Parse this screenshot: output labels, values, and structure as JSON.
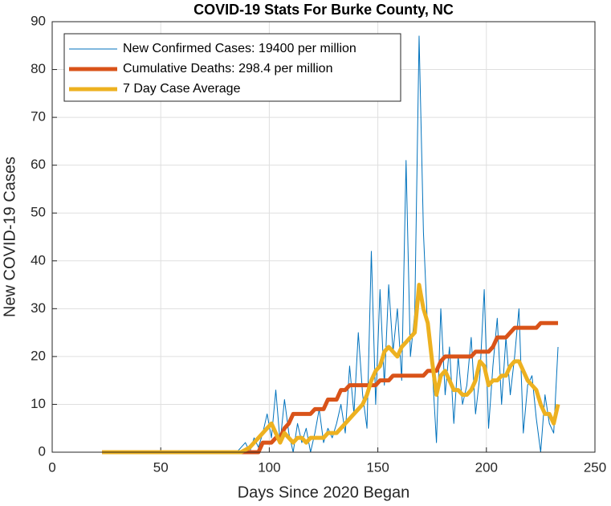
{
  "chart_data": {
    "type": "line",
    "title": "COVID-19 Stats For Burke County, NC",
    "x_label": "Days Since 2020 Began",
    "y_label": "New COVID-19 Cases",
    "x": [
      23,
      25,
      27,
      29,
      31,
      33,
      35,
      37,
      39,
      41,
      43,
      45,
      47,
      49,
      51,
      53,
      55,
      57,
      59,
      61,
      63,
      65,
      67,
      69,
      71,
      73,
      75,
      77,
      79,
      81,
      83,
      85,
      87,
      89,
      91,
      93,
      95,
      97,
      99,
      101,
      103,
      105,
      107,
      109,
      111,
      113,
      115,
      117,
      119,
      121,
      123,
      125,
      127,
      129,
      131,
      133,
      135,
      137,
      139,
      141,
      143,
      145,
      147,
      149,
      151,
      153,
      155,
      157,
      159,
      161,
      163,
      165,
      167,
      169,
      171,
      173,
      175,
      177,
      179,
      181,
      183,
      185,
      187,
      189,
      191,
      193,
      195,
      197,
      199,
      201,
      203,
      205,
      207,
      209,
      211,
      213,
      215,
      217,
      219,
      221,
      223,
      225,
      227,
      229,
      231,
      233
    ],
    "series": [
      {
        "name": "New Confirmed Cases: 19400 per million",
        "color": "#0072bd",
        "width": 1,
        "values": [
          0,
          0,
          0,
          0,
          0,
          0,
          0,
          0,
          0,
          0,
          0,
          0,
          0,
          0,
          0,
          0,
          0,
          0,
          0,
          0,
          0,
          0,
          0,
          0,
          0,
          0,
          0,
          0,
          0,
          0,
          0,
          0,
          1,
          2,
          0,
          3,
          1,
          4,
          8,
          3,
          13,
          2,
          11,
          4,
          0,
          6,
          2,
          5,
          0,
          4,
          9,
          2,
          5,
          3,
          6,
          10,
          4,
          18,
          8,
          25,
          12,
          5,
          42,
          10,
          34,
          14,
          35,
          21,
          30,
          15,
          61,
          20,
          29,
          87,
          46,
          25,
          18,
          2,
          30,
          12,
          22,
          6,
          20,
          10,
          14,
          24,
          8,
          16,
          34,
          5,
          18,
          28,
          10,
          24,
          12,
          20,
          30,
          4,
          14,
          16,
          7,
          0,
          12,
          6,
          4,
          22
        ]
      },
      {
        "name": "Cumulative Deaths: 298.4 per million",
        "color": "#d95319",
        "width": 5,
        "values": [
          0,
          0,
          0,
          0,
          0,
          0,
          0,
          0,
          0,
          0,
          0,
          0,
          0,
          0,
          0,
          0,
          0,
          0,
          0,
          0,
          0,
          0,
          0,
          0,
          0,
          0,
          0,
          0,
          0,
          0,
          0,
          0,
          0,
          0,
          0,
          0,
          0,
          2,
          2,
          2,
          3,
          3,
          5,
          6,
          8,
          8,
          8,
          8,
          8,
          9,
          9,
          9,
          11,
          11,
          11,
          13,
          13,
          14,
          14,
          14,
          14,
          14,
          14,
          14,
          15,
          15,
          15,
          16,
          16,
          16,
          16,
          16,
          16,
          16,
          16,
          17,
          17,
          17,
          19,
          20,
          20,
          20,
          20,
          20,
          20,
          20,
          21,
          21,
          21,
          21,
          22,
          24,
          24,
          24,
          25,
          26,
          26,
          26,
          26,
          26,
          26,
          27,
          27,
          27,
          27,
          27
        ]
      },
      {
        "name": "7 Day Case Average",
        "color": "#edb120",
        "width": 5,
        "values": [
          0,
          0,
          0,
          0,
          0,
          0,
          0,
          0,
          0,
          0,
          0,
          0,
          0,
          0,
          0,
          0,
          0,
          0,
          0,
          0,
          0,
          0,
          0,
          0,
          0,
          0,
          0,
          0,
          0,
          0,
          0,
          0,
          0,
          0.5,
          1,
          2,
          3,
          4,
          5,
          6,
          4,
          2,
          4,
          3,
          2,
          3,
          3,
          2,
          3,
          3,
          3,
          3,
          4,
          4,
          4,
          5,
          6,
          7,
          8,
          9,
          10,
          12,
          15,
          17,
          18,
          21,
          22,
          21,
          20,
          22,
          23,
          24,
          25,
          35,
          30,
          27,
          19,
          12,
          16,
          17,
          15,
          13,
          13,
          12,
          12,
          13,
          15,
          19,
          18,
          14,
          15,
          15,
          16,
          16,
          18,
          19,
          19,
          17,
          15,
          14,
          13,
          10,
          8,
          8,
          6,
          10
        ]
      }
    ],
    "xlim": [
      0,
      250
    ],
    "xticks": [
      0,
      50,
      100,
      150,
      200,
      250
    ],
    "ylim": [
      0,
      90
    ],
    "yticks": [
      0,
      10,
      20,
      30,
      40,
      50,
      60,
      70,
      80,
      90
    ],
    "grid": true,
    "legend": "upper left"
  }
}
